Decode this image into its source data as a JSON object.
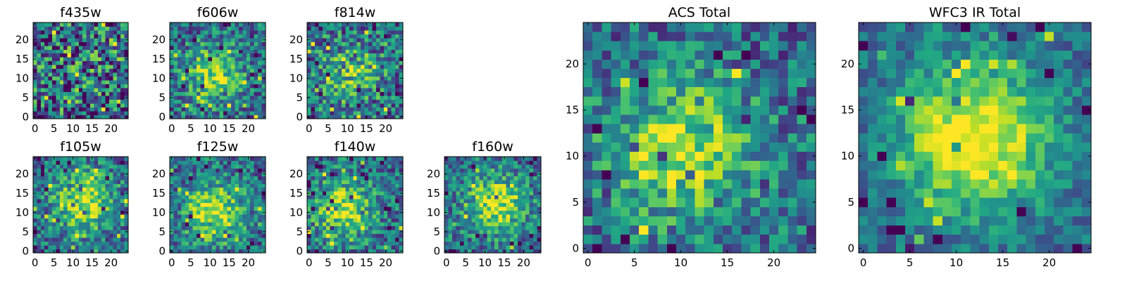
{
  "figure": {
    "colormap": "viridis",
    "grid": false
  },
  "chart_data": [
    {
      "type": "heatmap",
      "title": "f435w",
      "size": 25,
      "peak": [
        12,
        12
      ],
      "blob": 0.1,
      "noise": 0.9,
      "seed": 11,
      "xticks": [
        0,
        5,
        10,
        15,
        20
      ],
      "yticks": [
        0,
        5,
        10,
        15,
        20
      ],
      "xlim": [
        0,
        25
      ],
      "ylim": [
        0,
        25
      ]
    },
    {
      "type": "heatmap",
      "title": "f606w",
      "size": 25,
      "peak": [
        11,
        11
      ],
      "blob": 0.45,
      "noise": 0.6,
      "seed": 23,
      "xticks": [
        0,
        5,
        10,
        15,
        20
      ],
      "yticks": [
        0,
        5,
        10,
        15,
        20
      ],
      "xlim": [
        0,
        25
      ],
      "ylim": [
        0,
        25
      ]
    },
    {
      "type": "heatmap",
      "title": "f814w",
      "size": 25,
      "peak": [
        11,
        11
      ],
      "blob": 0.35,
      "noise": 0.7,
      "seed": 37,
      "xticks": [
        0,
        5,
        10,
        15,
        20
      ],
      "yticks": [
        0,
        5,
        10,
        15,
        20
      ],
      "xlim": [
        0,
        25
      ],
      "ylim": [
        0,
        25
      ]
    },
    {
      "type": "heatmap",
      "title": "f105w",
      "size": 25,
      "peak": [
        13,
        13
      ],
      "blob": 0.55,
      "noise": 0.55,
      "seed": 41,
      "xticks": [
        0,
        5,
        10,
        15,
        20
      ],
      "yticks": [
        0,
        5,
        10,
        15,
        20
      ],
      "xlim": [
        0,
        25
      ],
      "ylim": [
        0,
        25
      ]
    },
    {
      "type": "heatmap",
      "title": "f125w",
      "size": 25,
      "peak": [
        11,
        10
      ],
      "blob": 0.55,
      "noise": 0.55,
      "seed": 53,
      "xticks": [
        0,
        5,
        10,
        15,
        20
      ],
      "yticks": [
        0,
        5,
        10,
        15,
        20
      ],
      "xlim": [
        0,
        25
      ],
      "ylim": [
        0,
        25
      ]
    },
    {
      "type": "heatmap",
      "title": "f140w",
      "size": 25,
      "peak": [
        9,
        11
      ],
      "blob": 0.55,
      "noise": 0.55,
      "seed": 67,
      "xticks": [
        0,
        5,
        10,
        15,
        20
      ],
      "yticks": [
        0,
        5,
        10,
        15,
        20
      ],
      "xlim": [
        0,
        25
      ],
      "ylim": [
        0,
        25
      ]
    },
    {
      "type": "heatmap",
      "title": "f160w",
      "size": 25,
      "peak": [
        13,
        12
      ],
      "blob": 0.55,
      "noise": 0.55,
      "seed": 79,
      "xticks": [
        0,
        5,
        10,
        15,
        20
      ],
      "yticks": [
        0,
        5,
        10,
        15,
        20
      ],
      "xlim": [
        0,
        25
      ],
      "ylim": [
        0,
        25
      ]
    },
    {
      "type": "heatmap",
      "title": "ACS Total",
      "size": 25,
      "peak": [
        10,
        11
      ],
      "blob": 0.5,
      "noise": 0.55,
      "seed": 97,
      "xticks": [
        0,
        5,
        10,
        15,
        20
      ],
      "yticks": [
        0,
        5,
        10,
        15,
        20
      ],
      "xlim": [
        0,
        25
      ],
      "ylim": [
        0,
        25
      ]
    },
    {
      "type": "heatmap",
      "title": "WFC3 IR Total",
      "size": 25,
      "peak": [
        12,
        12
      ],
      "blob": 0.7,
      "noise": 0.35,
      "seed": 113,
      "xticks": [
        0,
        5,
        10,
        15,
        20
      ],
      "yticks": [
        0,
        5,
        10,
        15,
        20
      ],
      "xlim": [
        0,
        25
      ],
      "ylim": [
        0,
        25
      ]
    }
  ]
}
